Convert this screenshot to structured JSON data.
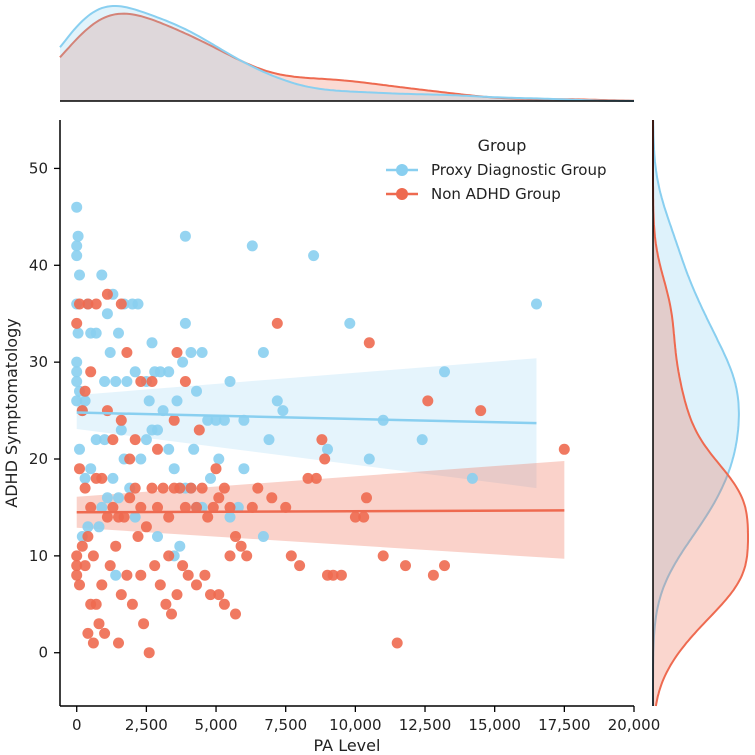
{
  "colors": {
    "proxy": "#89cff0",
    "non": "#ee6a50",
    "axis": "#000000",
    "background": "#ffffff"
  },
  "chart_data": {
    "type": "scatter",
    "title": "",
    "xlabel": "PA Level",
    "ylabel": "ADHD Symptomatology",
    "xlim": [
      -600,
      20000
    ],
    "ylim": [
      -5.5,
      55
    ],
    "xticks": [
      0,
      2500,
      5000,
      7500,
      10000,
      12500,
      15000,
      17500,
      20000
    ],
    "xtick_labels": [
      "0",
      "2,500",
      "5,000",
      "7,500",
      "10,000",
      "12,500",
      "15,000",
      "17,500",
      "20,000"
    ],
    "yticks": [
      0,
      10,
      20,
      30,
      40,
      50
    ],
    "ytick_labels": [
      "0",
      "10",
      "20",
      "30",
      "40",
      "50"
    ],
    "legend": {
      "title": "Group",
      "position": "top-right",
      "entries": [
        "Proxy Diagnostic Group",
        "Non ADHD Group"
      ]
    },
    "series": [
      {
        "name": "Proxy Diagnostic Group",
        "color": "#89cff0",
        "points": [
          [
            0,
            46
          ],
          [
            0,
            42
          ],
          [
            0,
            41
          ],
          [
            50,
            43
          ],
          [
            100,
            39
          ],
          [
            0,
            36
          ],
          [
            50,
            33
          ],
          [
            0,
            30
          ],
          [
            0,
            29
          ],
          [
            0,
            28
          ],
          [
            0,
            26
          ],
          [
            100,
            27
          ],
          [
            200,
            25
          ],
          [
            300,
            26
          ],
          [
            500,
            33
          ],
          [
            700,
            33
          ],
          [
            400,
            36
          ],
          [
            900,
            39
          ],
          [
            1100,
            35
          ],
          [
            1300,
            37
          ],
          [
            1500,
            33
          ],
          [
            1700,
            36
          ],
          [
            2000,
            36
          ],
          [
            2200,
            36
          ],
          [
            1200,
            31
          ],
          [
            1400,
            28
          ],
          [
            1000,
            28
          ],
          [
            1800,
            28
          ],
          [
            2100,
            29
          ],
          [
            2500,
            28
          ],
          [
            2600,
            26
          ],
          [
            2700,
            32
          ],
          [
            2800,
            29
          ],
          [
            3000,
            29
          ],
          [
            3300,
            29
          ],
          [
            3600,
            26
          ],
          [
            3800,
            30
          ],
          [
            3900,
            34
          ],
          [
            4100,
            31
          ],
          [
            4300,
            27
          ],
          [
            4500,
            31
          ],
          [
            4700,
            24
          ],
          [
            5000,
            24
          ],
          [
            5300,
            24
          ],
          [
            5500,
            28
          ],
          [
            6000,
            24
          ],
          [
            6300,
            42
          ],
          [
            6700,
            31
          ],
          [
            6900,
            22
          ],
          [
            7200,
            26
          ],
          [
            7400,
            25
          ],
          [
            8500,
            41
          ],
          [
            9000,
            21
          ],
          [
            9800,
            34
          ],
          [
            10500,
            20
          ],
          [
            11000,
            24
          ],
          [
            12400,
            22
          ],
          [
            13200,
            29
          ],
          [
            14200,
            18
          ],
          [
            16500,
            36
          ],
          [
            3900,
            43
          ],
          [
            100,
            21
          ],
          [
            300,
            18
          ],
          [
            500,
            19
          ],
          [
            700,
            22
          ],
          [
            900,
            15
          ],
          [
            1100,
            16
          ],
          [
            1300,
            18
          ],
          [
            1500,
            16
          ],
          [
            1700,
            20
          ],
          [
            1900,
            17
          ],
          [
            2100,
            14
          ],
          [
            2300,
            20
          ],
          [
            2500,
            22
          ],
          [
            2700,
            23
          ],
          [
            2900,
            23
          ],
          [
            3100,
            25
          ],
          [
            3300,
            21
          ],
          [
            3500,
            19
          ],
          [
            3700,
            17
          ],
          [
            3900,
            17
          ],
          [
            4100,
            17
          ],
          [
            4300,
            15
          ],
          [
            4500,
            15
          ],
          [
            4800,
            18
          ],
          [
            5100,
            20
          ],
          [
            5500,
            14
          ],
          [
            5800,
            15
          ],
          [
            6000,
            19
          ],
          [
            6700,
            12
          ],
          [
            200,
            12
          ],
          [
            400,
            13
          ],
          [
            800,
            13
          ],
          [
            1000,
            22
          ],
          [
            1400,
            8
          ],
          [
            1600,
            23
          ],
          [
            3500,
            10
          ],
          [
            3700,
            11
          ],
          [
            2900,
            12
          ],
          [
            4200,
            21
          ]
        ],
        "fit": {
          "x": [
            0,
            16500
          ],
          "y": [
            24.8,
            23.7
          ],
          "ci_lower": [
            23.1,
            17.0
          ],
          "ci_upper": [
            26.6,
            30.4
          ]
        }
      },
      {
        "name": "Non ADHD Group",
        "color": "#ee6a50",
        "points": [
          [
            0,
            34
          ],
          [
            100,
            36
          ],
          [
            400,
            36
          ],
          [
            700,
            36
          ],
          [
            1100,
            37
          ],
          [
            1600,
            36
          ],
          [
            1800,
            31
          ],
          [
            3600,
            31
          ],
          [
            3900,
            28
          ],
          [
            2300,
            28
          ],
          [
            2700,
            28
          ],
          [
            3500,
            24
          ],
          [
            2900,
            21
          ],
          [
            1900,
            20
          ],
          [
            2100,
            22
          ],
          [
            1600,
            24
          ],
          [
            1300,
            22
          ],
          [
            1100,
            25
          ],
          [
            500,
            29
          ],
          [
            300,
            27
          ],
          [
            200,
            25
          ],
          [
            100,
            19
          ],
          [
            300,
            17
          ],
          [
            500,
            15
          ],
          [
            700,
            18
          ],
          [
            900,
            18
          ],
          [
            1100,
            14
          ],
          [
            1300,
            15
          ],
          [
            1500,
            14
          ],
          [
            1700,
            14
          ],
          [
            1900,
            16
          ],
          [
            2100,
            17
          ],
          [
            2300,
            15
          ],
          [
            2500,
            13
          ],
          [
            2700,
            17
          ],
          [
            2900,
            15
          ],
          [
            3100,
            17
          ],
          [
            3300,
            14
          ],
          [
            3500,
            17
          ],
          [
            3700,
            17
          ],
          [
            3900,
            15
          ],
          [
            4100,
            17
          ],
          [
            4300,
            15
          ],
          [
            4500,
            17
          ],
          [
            4700,
            14
          ],
          [
            4900,
            15
          ],
          [
            5100,
            16
          ],
          [
            5300,
            17
          ],
          [
            5500,
            15
          ],
          [
            5700,
            12
          ],
          [
            5900,
            11
          ],
          [
            6100,
            10
          ],
          [
            6300,
            15
          ],
          [
            6500,
            17
          ],
          [
            7000,
            16
          ],
          [
            7500,
            15
          ],
          [
            7700,
            10
          ],
          [
            8000,
            9
          ],
          [
            8300,
            18
          ],
          [
            8600,
            18
          ],
          [
            8800,
            22
          ],
          [
            8900,
            20
          ],
          [
            9000,
            8
          ],
          [
            9200,
            8
          ],
          [
            9500,
            8
          ],
          [
            10000,
            14
          ],
          [
            10300,
            14
          ],
          [
            10500,
            32
          ],
          [
            10400,
            16
          ],
          [
            11000,
            10
          ],
          [
            11500,
            1
          ],
          [
            11800,
            9
          ],
          [
            12600,
            26
          ],
          [
            12800,
            8
          ],
          [
            13200,
            9
          ],
          [
            14500,
            25
          ],
          [
            17500,
            21
          ],
          [
            7200,
            34
          ],
          [
            5000,
            19
          ],
          [
            4400,
            23
          ],
          [
            0,
            9
          ],
          [
            0,
            10
          ],
          [
            0,
            8
          ],
          [
            100,
            7
          ],
          [
            200,
            11
          ],
          [
            300,
            9
          ],
          [
            400,
            12
          ],
          [
            500,
            5
          ],
          [
            600,
            10
          ],
          [
            700,
            5
          ],
          [
            800,
            3
          ],
          [
            900,
            7
          ],
          [
            1000,
            2
          ],
          [
            1200,
            9
          ],
          [
            1400,
            11
          ],
          [
            1600,
            6
          ],
          [
            1800,
            8
          ],
          [
            2000,
            5
          ],
          [
            2200,
            12
          ],
          [
            2400,
            3
          ],
          [
            2600,
            0
          ],
          [
            2800,
            9
          ],
          [
            3000,
            7
          ],
          [
            3200,
            5
          ],
          [
            3400,
            4
          ],
          [
            3600,
            6
          ],
          [
            3800,
            9
          ],
          [
            4000,
            8
          ],
          [
            4300,
            7
          ],
          [
            4600,
            8
          ],
          [
            4800,
            6
          ],
          [
            5100,
            6
          ],
          [
            5300,
            5
          ],
          [
            5500,
            10
          ],
          [
            5700,
            4
          ],
          [
            1500,
            1
          ],
          [
            600,
            1
          ],
          [
            400,
            2
          ],
          [
            2300,
            8
          ],
          [
            3300,
            10
          ]
        ],
        "fit": {
          "x": [
            0,
            17500
          ],
          "y": [
            14.5,
            14.7
          ],
          "ci_lower": [
            12.9,
            9.7
          ],
          "ci_upper": [
            16.1,
            19.8
          ]
        }
      }
    ]
  }
}
